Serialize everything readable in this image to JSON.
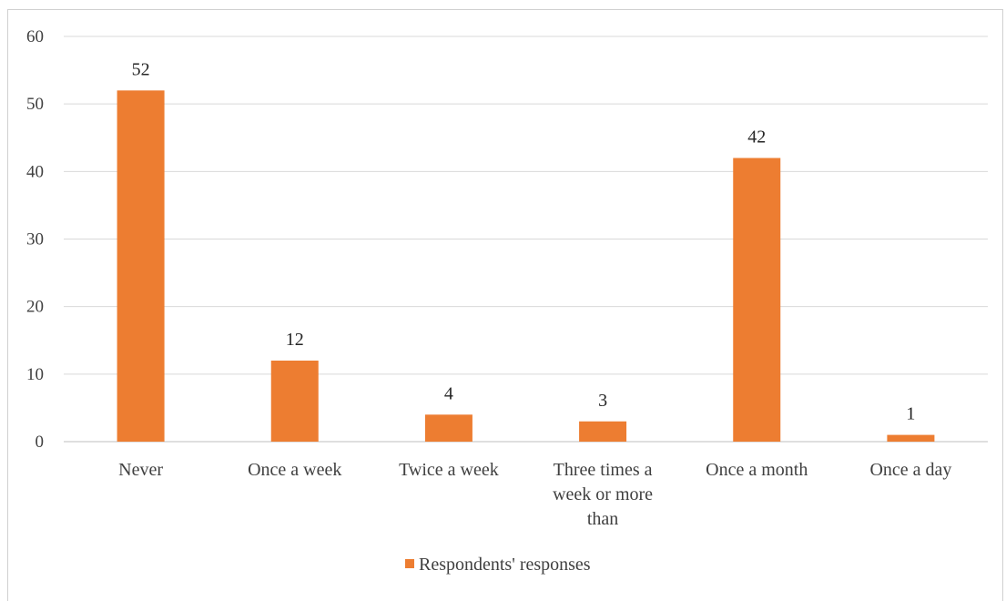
{
  "chart_data": {
    "type": "bar",
    "categories": [
      [
        "Never"
      ],
      [
        "Once a week"
      ],
      [
        "Twice a week"
      ],
      [
        "Three times a",
        "week or more",
        "than"
      ],
      [
        "Once a month"
      ],
      [
        "Once a day"
      ]
    ],
    "series": [
      {
        "name": "Respondents' responses",
        "values": [
          52,
          12,
          4,
          3,
          42,
          1
        ],
        "color": "#ED7D31"
      }
    ],
    "ylim": [
      0,
      60
    ],
    "yticks": [
      0,
      10,
      20,
      30,
      40,
      50,
      60
    ],
    "grid": true,
    "legend": "bottom-center",
    "data_labels": true
  }
}
